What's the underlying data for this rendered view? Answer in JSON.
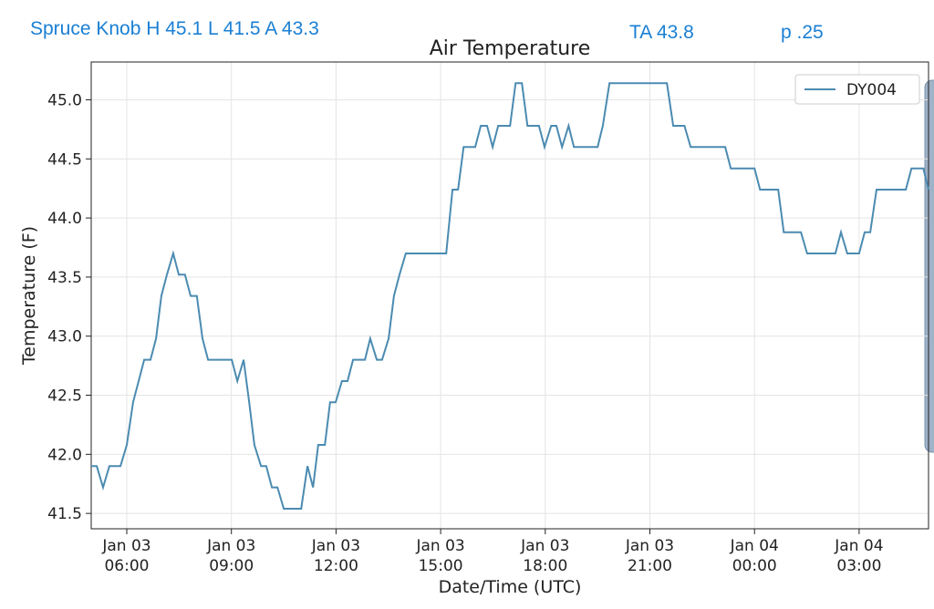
{
  "header": {
    "station": "Spruce Knob H 45.1 L 41.5 A 43.3",
    "ta": "TA 43.8",
    "p": "p .25"
  },
  "chart_data": {
    "type": "line",
    "title": "Air Temperature",
    "xlabel": "Date/Time (UTC)",
    "ylabel": "Temperature (F)",
    "x": [
      4.98,
      5.14,
      5.32,
      5.5,
      5.82,
      6.0,
      6.18,
      6.34,
      6.5,
      6.68,
      6.84,
      6.99,
      7.15,
      7.33,
      7.49,
      7.67,
      7.83,
      8.01,
      8.17,
      8.33,
      9.01,
      9.17,
      9.35,
      9.51,
      9.66,
      9.85,
      10.0,
      10.16,
      10.32,
      10.5,
      11.0,
      11.18,
      11.34,
      11.49,
      11.68,
      11.83,
      11.99,
      12.17,
      12.33,
      12.49,
      12.83,
      12.98,
      13.17,
      13.32,
      13.51,
      13.66,
      13.82,
      14.0,
      15.16,
      15.34,
      15.5,
      15.66,
      15.99,
      16.15,
      16.33,
      16.49,
      16.65,
      16.99,
      17.15,
      17.33,
      17.49,
      17.82,
      17.98,
      18.17,
      18.32,
      18.48,
      18.67,
      18.82,
      19.5,
      19.65,
      19.84,
      21.49,
      21.67,
      21.99,
      22.17,
      23.16,
      23.32,
      24.0,
      24.16,
      24.68,
      24.84,
      25.33,
      25.51,
      26.32,
      26.48,
      26.66,
      27.0,
      27.16,
      27.32,
      27.5,
      28.34,
      28.5,
      28.84,
      28.99
    ],
    "series": [
      {
        "name": "DY004",
        "color": "#4b8bb1",
        "values": [
          41.9,
          41.9,
          41.72,
          41.9,
          41.9,
          42.08,
          42.44,
          42.62,
          42.8,
          42.8,
          42.98,
          43.34,
          43.52,
          43.7,
          43.52,
          43.52,
          43.34,
          43.34,
          42.98,
          42.8,
          42.8,
          42.62,
          42.8,
          42.44,
          42.08,
          41.9,
          41.9,
          41.72,
          41.72,
          41.54,
          41.54,
          41.9,
          41.72,
          42.08,
          42.08,
          42.44,
          42.44,
          42.62,
          42.62,
          42.8,
          42.8,
          42.98,
          42.8,
          42.8,
          42.98,
          43.34,
          43.52,
          43.7,
          43.7,
          44.24,
          44.24,
          44.6,
          44.6,
          44.78,
          44.78,
          44.6,
          44.78,
          44.78,
          45.14,
          45.14,
          44.78,
          44.78,
          44.6,
          44.78,
          44.78,
          44.6,
          44.78,
          44.6,
          44.6,
          44.78,
          45.14,
          45.14,
          44.78,
          44.78,
          44.6,
          44.6,
          44.42,
          44.42,
          44.24,
          44.24,
          43.88,
          43.88,
          43.7,
          43.7,
          43.88,
          43.7,
          43.7,
          43.88,
          43.88,
          44.24,
          44.24,
          44.42,
          44.42,
          44.24
        ]
      }
    ],
    "xlim": [
      4.98,
      28.99
    ],
    "xticks": [
      {
        "value": 6,
        "label": "Jan 03\n06:00"
      },
      {
        "value": 9,
        "label": "Jan 03\n09:00"
      },
      {
        "value": 12,
        "label": "Jan 03\n12:00"
      },
      {
        "value": 15,
        "label": "Jan 03\n15:00"
      },
      {
        "value": 18,
        "label": "Jan 03\n18:00"
      },
      {
        "value": 21,
        "label": "Jan 03\n21:00"
      },
      {
        "value": 24,
        "label": "Jan 04\n00:00"
      },
      {
        "value": 27,
        "label": "Jan 04\n03:00"
      }
    ],
    "ylim": [
      41.37,
      45.32
    ],
    "yticks": [
      41.5,
      {
        "value": 42,
        "label": "42.0"
      },
      42.5,
      {
        "value": 43,
        "label": "43.0"
      },
      43.5,
      {
        "value": 44,
        "label": "44.0"
      },
      44.5,
      {
        "value": 45,
        "label": "45.0"
      }
    ],
    "grid": true,
    "legend": "upper right"
  }
}
